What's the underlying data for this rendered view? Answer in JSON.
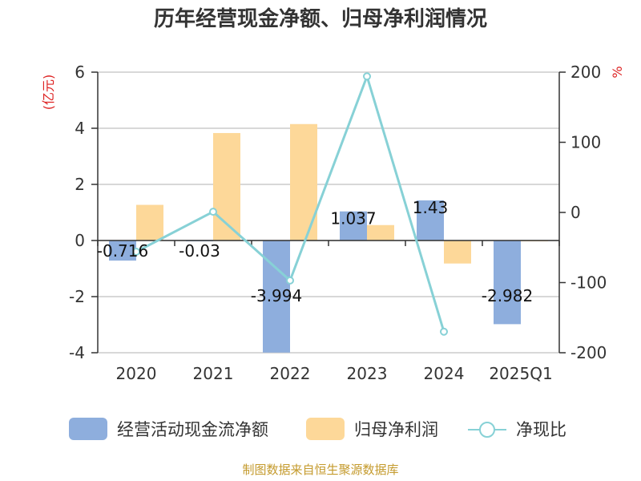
{
  "chart_data": {
    "type": "bar",
    "title": "历年经营现金净额、归母净利润情况",
    "ylabel_left": "(亿元)",
    "ylabel_right": "%",
    "categories": [
      "2020",
      "2021",
      "2022",
      "2023",
      "2024",
      "2025Q1"
    ],
    "ylim_left": [
      -4,
      6
    ],
    "ylim_right": [
      -200,
      200
    ],
    "yticks_left": [
      "6",
      "4",
      "2",
      "0",
      "-2",
      "-4"
    ],
    "yticks_right": [
      "200",
      "100",
      "0",
      "-100",
      "-200"
    ],
    "grid": true,
    "legend_position": "bottom",
    "series": [
      {
        "name": "经营活动现金流净额",
        "type": "bar",
        "axis": "left",
        "color": "#8eaedd",
        "values": [
          -0.716,
          -0.03,
          -3.994,
          1.037,
          1.43,
          -2.982
        ],
        "labels": [
          "-0.716",
          "-0.03",
          "-3.994",
          "1.037",
          "1.43",
          "-2.982"
        ]
      },
      {
        "name": "归母净利润",
        "type": "bar",
        "axis": "left",
        "color": "#fdd899",
        "values": [
          1.27,
          3.83,
          4.15,
          0.55,
          -0.82,
          -0.03
        ]
      },
      {
        "name": "净现比",
        "type": "line",
        "axis": "right",
        "color": "#87d1d6",
        "values": [
          -56,
          1,
          -97,
          194,
          -170,
          null
        ]
      }
    ],
    "source": "制图数据来自恒生聚源数据库"
  }
}
